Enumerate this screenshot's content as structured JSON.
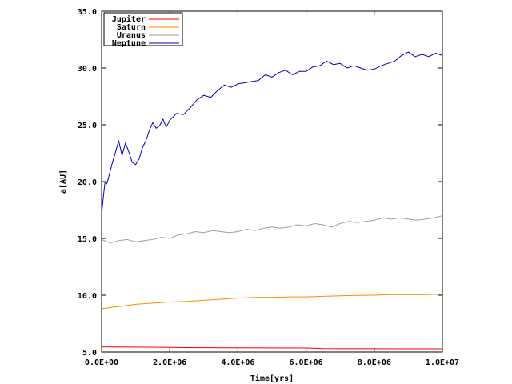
{
  "chart_data": {
    "type": "line",
    "title": "",
    "xlabel": "Time[yrs]",
    "ylabel": "a[AU]",
    "xlim": [
      0,
      10000000
    ],
    "ylim": [
      5.0,
      35.0
    ],
    "x_ticks": [
      {
        "value": 0,
        "label": "0.0E+00"
      },
      {
        "value": 2000000,
        "label": "2.0E+06"
      },
      {
        "value": 4000000,
        "label": "4.0E+06"
      },
      {
        "value": 6000000,
        "label": "6.0E+06"
      },
      {
        "value": 8000000,
        "label": "8.0E+06"
      },
      {
        "value": 10000000,
        "label": "1.0E+07"
      }
    ],
    "y_ticks": [
      {
        "value": 5.0,
        "label": "5.0"
      },
      {
        "value": 10.0,
        "label": "10.0"
      },
      {
        "value": 15.0,
        "label": "15.0"
      },
      {
        "value": 20.0,
        "label": "20.0"
      },
      {
        "value": 25.0,
        "label": "25.0"
      },
      {
        "value": 30.0,
        "label": "30.0"
      },
      {
        "value": 35.0,
        "label": "35.0"
      }
    ],
    "grid": false,
    "legend_position": "top-left",
    "series": [
      {
        "name": "Jupiter",
        "color": "#ff0000",
        "x": [
          0,
          500000,
          1000000,
          1500000,
          2000000,
          2500000,
          3000000,
          4000000,
          5000000,
          6000000,
          6500000,
          7000000,
          8000000,
          9000000,
          10000000
        ],
        "y": [
          5.45,
          5.44,
          5.43,
          5.42,
          5.41,
          5.39,
          5.38,
          5.37,
          5.36,
          5.35,
          5.3,
          5.29,
          5.29,
          5.28,
          5.28
        ]
      },
      {
        "name": "Saturn",
        "color": "#ff8c00",
        "x": [
          0,
          200000,
          500000,
          1000000,
          1500000,
          2000000,
          2500000,
          3000000,
          3500000,
          4000000,
          4500000,
          5000000,
          5500000,
          6000000,
          6500000,
          7000000,
          7500000,
          8000000,
          8500000,
          9000000,
          9500000,
          10000000
        ],
        "y": [
          8.8,
          8.9,
          9.0,
          9.2,
          9.3,
          9.4,
          9.45,
          9.55,
          9.65,
          9.75,
          9.8,
          9.8,
          9.85,
          9.85,
          9.9,
          9.95,
          9.98,
          10.0,
          10.05,
          10.05,
          10.05,
          10.1
        ]
      },
      {
        "name": "Uranus",
        "color": "#a0a0a0",
        "x": [
          0,
          250000,
          500000,
          750000,
          1000000,
          1250000,
          1500000,
          1750000,
          2000000,
          2250000,
          2500000,
          2750000,
          3000000,
          3250000,
          3500000,
          3750000,
          4000000,
          4250000,
          4500000,
          4750000,
          5000000,
          5250000,
          5500000,
          5750000,
          6000000,
          6250000,
          6500000,
          6750000,
          7000000,
          7250000,
          7500000,
          7750000,
          8000000,
          8250000,
          8500000,
          8750000,
          9000000,
          9250000,
          9500000,
          9750000,
          10000000
        ],
        "y": [
          14.9,
          14.6,
          14.8,
          14.9,
          14.7,
          14.8,
          14.9,
          15.1,
          15.0,
          15.3,
          15.4,
          15.6,
          15.5,
          15.7,
          15.6,
          15.5,
          15.6,
          15.8,
          15.7,
          15.9,
          16.0,
          15.9,
          16.0,
          16.2,
          16.1,
          16.3,
          16.2,
          16.0,
          16.3,
          16.5,
          16.4,
          16.5,
          16.6,
          16.8,
          16.7,
          16.8,
          16.7,
          16.6,
          16.7,
          16.8,
          17.0
        ]
      },
      {
        "name": "Neptune",
        "color": "#0000cc",
        "x": [
          0,
          50000,
          100000,
          150000,
          200000,
          300000,
          400000,
          500000,
          600000,
          700000,
          800000,
          900000,
          1000000,
          1100000,
          1200000,
          1300000,
          1400000,
          1500000,
          1600000,
          1700000,
          1800000,
          1900000,
          2000000,
          2200000,
          2400000,
          2600000,
          2800000,
          3000000,
          3200000,
          3400000,
          3600000,
          3800000,
          4000000,
          4200000,
          4400000,
          4600000,
          4800000,
          5000000,
          5200000,
          5400000,
          5600000,
          5800000,
          6000000,
          6200000,
          6400000,
          6600000,
          6800000,
          7000000,
          7200000,
          7400000,
          7600000,
          7800000,
          8000000,
          8200000,
          8400000,
          8600000,
          8800000,
          9000000,
          9200000,
          9400000,
          9600000,
          9800000,
          10000000
        ],
        "y": [
          17.1,
          18.6,
          20.0,
          19.8,
          20.3,
          21.5,
          22.5,
          23.6,
          22.3,
          23.4,
          22.6,
          21.7,
          21.5,
          22.0,
          23.0,
          23.6,
          24.5,
          25.2,
          24.7,
          24.9,
          25.5,
          24.8,
          25.4,
          26.0,
          25.9,
          26.5,
          27.2,
          27.6,
          27.4,
          28.0,
          28.5,
          28.3,
          28.6,
          28.7,
          28.8,
          28.9,
          29.4,
          29.2,
          29.6,
          29.8,
          29.4,
          29.7,
          29.7,
          30.1,
          30.2,
          30.6,
          30.3,
          30.4,
          30.0,
          30.2,
          30.0,
          29.8,
          29.9,
          30.2,
          30.4,
          30.6,
          31.1,
          31.4,
          31.0,
          31.2,
          31.0,
          31.3,
          31.1
        ]
      }
    ]
  }
}
